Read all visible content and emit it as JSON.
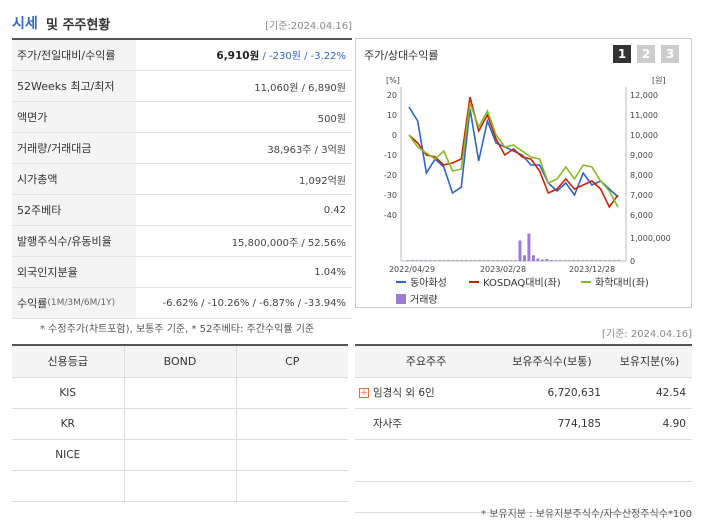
{
  "header": {
    "title_main": "시세",
    "title_rest": "및 주주현황",
    "asof": "[기준:2024.04.16]"
  },
  "summary": {
    "rows": [
      {
        "label": "주가/전일대비/수익률",
        "v1": "6,910원",
        "v2": " / -230원",
        "v3": " / -3.22%"
      },
      {
        "label": "52Weeks 최고/최저",
        "value": "11,060원 / 6,890원"
      },
      {
        "label": "액면가",
        "value": "500원"
      },
      {
        "label": "거래량/거래대금",
        "value": "38,963주 / 3억원"
      },
      {
        "label": "시가총액",
        "value": "1,092억원"
      },
      {
        "label": "52주베타",
        "value": "0.42"
      },
      {
        "label": "발행주식수/유동비율",
        "value": "15,800,000주 / 52.56%"
      },
      {
        "label": "외국인지분율",
        "value": "1.04%"
      },
      {
        "label": "수익률",
        "label_sub": " (1M/3M/6M/1Y)",
        "value": "-6.62% / -10.26% / -6.87% / -33.94%"
      }
    ],
    "footnote": "* 수정주가(차트포함), 보통주 기준, * 52주베타: 주간수익률 기준"
  },
  "chart_panel": {
    "title": "주가/상대수익률",
    "tabs": [
      "1",
      "2",
      "3"
    ],
    "left_unit": "[%]",
    "right_unit": "[원]",
    "legend": [
      "동아화성",
      "KOSDAQ대비(좌)",
      "화학대비(좌)",
      "거래량"
    ]
  },
  "chart_data": {
    "type": "line",
    "x_ticks": [
      "2022/04/29",
      "2023/02/28",
      "2023/12/28"
    ],
    "ylim_left": [
      -40,
      20
    ],
    "y_ticks_left": [
      "20",
      "10",
      "0",
      "-10",
      "-20",
      "-30",
      "-40"
    ],
    "ylim_right": [
      6000,
      12000
    ],
    "y_ticks_right": [
      "12,000",
      "11,000",
      "10,000",
      "9,000",
      "8,000",
      "7,000",
      "6,000"
    ],
    "volume_ticks": [
      "1,000,000",
      "0"
    ],
    "series": [
      {
        "name": "동아화성",
        "color": "#2d64c8",
        "axis": "left",
        "values": [
          14,
          7,
          -19,
          -12,
          -16,
          -29,
          -26,
          13,
          -13,
          7,
          -4,
          -6,
          -8,
          -10,
          -15,
          -15,
          -24,
          -28,
          -24,
          -30,
          -19,
          -25,
          -23,
          -27,
          -31
        ]
      },
      {
        "name": "KOSDAQ대비(좌)",
        "color": "#cc2200",
        "axis": "left",
        "values": [
          0,
          -4,
          -10,
          -11,
          -15,
          -14,
          -12,
          19,
          2,
          10,
          -2,
          -10,
          -7,
          -11,
          -12,
          -18,
          -29,
          -27,
          -22,
          -27,
          -25,
          -23,
          -27,
          -36,
          -30
        ]
      },
      {
        "name": "화학대비(좌)",
        "color": "#88bb22",
        "axis": "left",
        "values": [
          0,
          -6,
          -9,
          -12,
          -8,
          -18,
          -17,
          16,
          4,
          12,
          0,
          -6,
          -5,
          -8,
          -11,
          -12,
          -24,
          -22,
          -16,
          -22,
          -15,
          -16,
          -23,
          -28,
          -36
        ]
      }
    ],
    "volume": {
      "name": "거래량",
      "color": "#9b7bd6",
      "values": [
        30000,
        30000,
        30000,
        30000,
        30000,
        30000,
        30000,
        30000,
        30000,
        30000,
        30000,
        30000,
        30000,
        30000,
        30000,
        30000,
        30000,
        30000,
        30000,
        30000,
        30000,
        30000,
        30000,
        30000,
        30000,
        820000,
        230000,
        1100000,
        230000,
        100000,
        60000,
        80000,
        40000,
        30000,
        30000,
        30000,
        30000,
        30000,
        30000,
        30000,
        30000,
        30000,
        30000,
        30000,
        30000,
        30000,
        30000,
        30000
      ]
    }
  },
  "asof2": "[기준: 2024.04.16]",
  "credit": {
    "headers": [
      "신용등급",
      "BOND",
      "CP"
    ],
    "rows": [
      [
        "KIS",
        "",
        ""
      ],
      [
        "KR",
        "",
        ""
      ],
      [
        "NICE",
        "",
        ""
      ],
      [
        "",
        "",
        ""
      ]
    ]
  },
  "holders": {
    "headers": [
      "주요주주",
      "보유주식수(보통)",
      "보유지분(%)"
    ],
    "rows": [
      {
        "name": "임경식 외 6인",
        "shares": "6,720,631",
        "pct": "42.54",
        "expand": true
      },
      {
        "name": "자사주",
        "shares": "774,185",
        "pct": "4.90",
        "expand": false
      }
    ],
    "footnote": "* 보유지분 : 보유지분주식수/자수산정주식수*100"
  }
}
